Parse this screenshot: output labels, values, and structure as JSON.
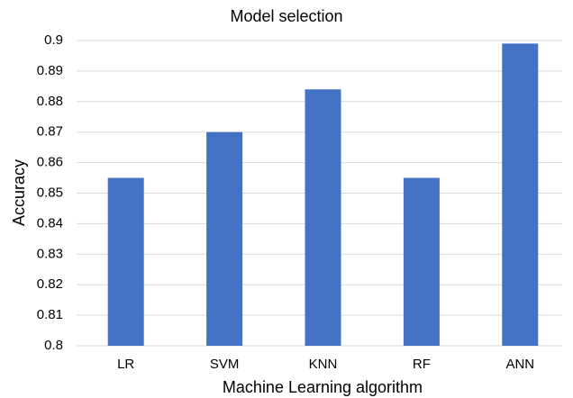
{
  "chart_data": {
    "type": "bar",
    "title": "Model selection",
    "x_label": "Machine Learning algorithm",
    "y_label": "Accuracy",
    "categories": [
      "LR",
      "SVM",
      "KNN",
      "RF",
      "ANN"
    ],
    "values": [
      0.855,
      0.87,
      0.884,
      0.855,
      0.899
    ],
    "color": "#4472c4",
    "ylim": [
      0.8,
      0.9
    ],
    "yticks": [
      0.8,
      0.81,
      0.82,
      0.83,
      0.84,
      0.85,
      0.86,
      0.87,
      0.88,
      0.89,
      0.9
    ],
    "grid": true
  }
}
